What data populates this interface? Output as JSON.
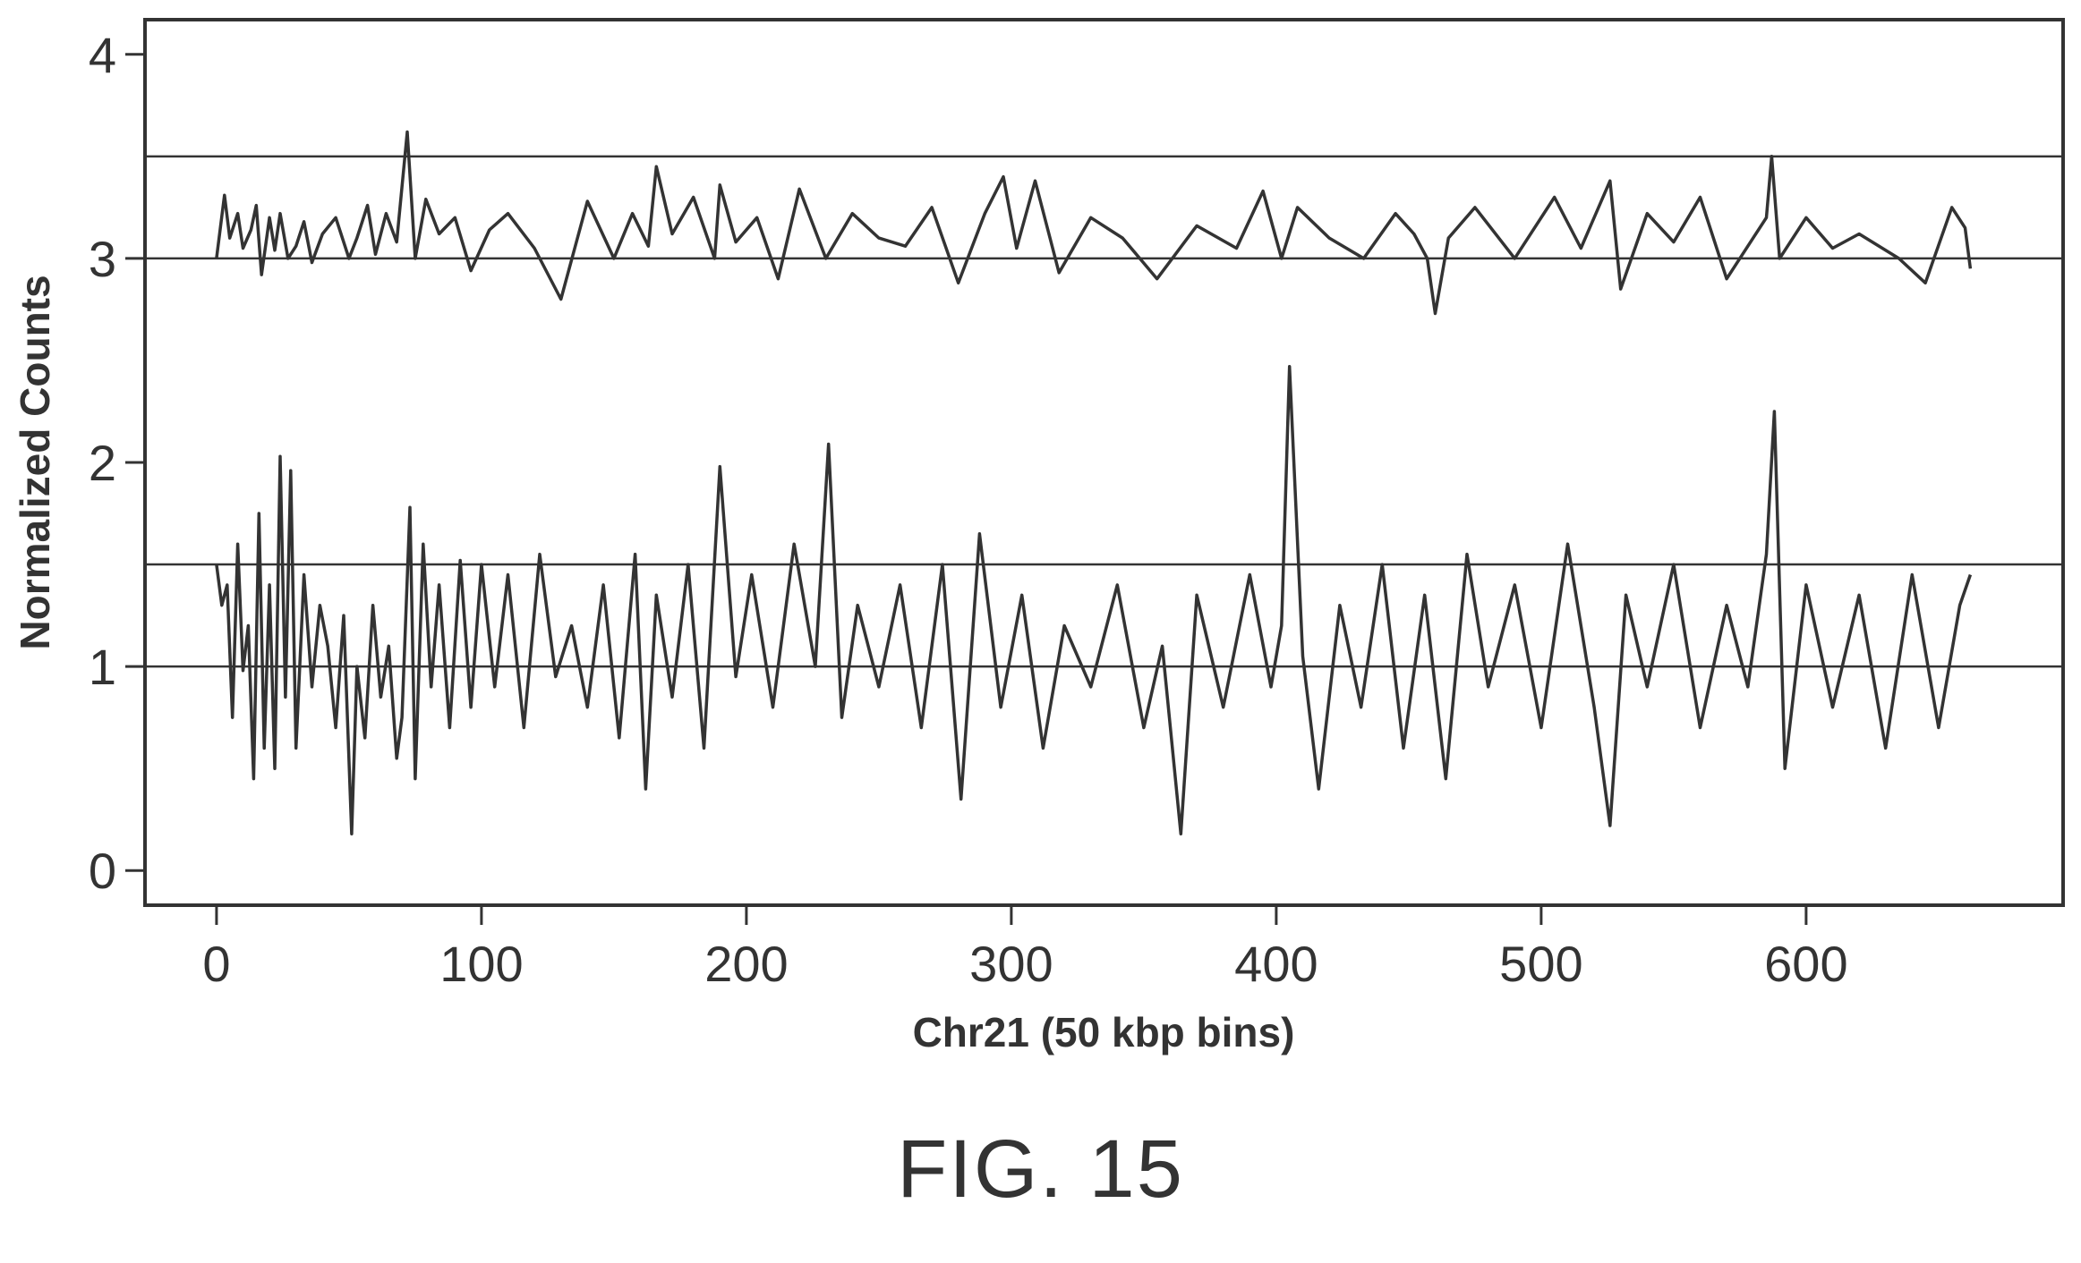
{
  "chart_data": {
    "type": "line",
    "xlabel": "Chr21 (50 kbp bins)",
    "ylabel": "Normalized Counts",
    "xlim": [
      -27,
      697
    ],
    "ylim": [
      -0.17,
      4.17
    ],
    "xticks": [
      0,
      100,
      200,
      300,
      400,
      500,
      600
    ],
    "xtick_labels": [
      "0",
      "100",
      "200",
      "300",
      "400",
      "500",
      "600"
    ],
    "yticks": [
      0,
      1,
      2,
      3,
      4
    ],
    "ytick_labels": [
      "0",
      "1",
      "2",
      "3",
      "4"
    ],
    "reference_lines": [
      1,
      1.5,
      3,
      3.5
    ],
    "grid": false,
    "legend": "none",
    "line_color": "#333333",
    "series": [
      {
        "x": [
          0,
          3,
          5,
          8,
          10,
          13,
          15,
          17,
          20,
          22,
          24,
          27,
          30,
          33,
          36,
          40,
          45,
          50,
          53,
          57,
          60,
          64,
          68,
          72,
          75,
          79,
          84,
          90,
          96,
          103,
          110,
          120,
          130,
          140,
          150,
          157,
          163,
          166,
          172,
          180,
          188,
          190,
          196,
          204,
          212,
          220,
          230,
          240,
          250,
          260,
          270,
          280,
          290,
          297,
          302,
          309,
          318,
          330,
          342,
          355,
          370,
          385,
          395,
          402,
          408,
          420,
          433,
          445,
          452,
          457,
          460,
          465,
          475,
          490,
          505,
          515,
          526,
          530,
          540,
          550,
          560,
          570,
          580,
          585,
          587,
          590,
          600,
          610,
          620,
          635,
          645,
          655,
          660,
          662
        ],
        "y": [
          3.0,
          3.31,
          3.1,
          3.22,
          3.05,
          3.14,
          3.26,
          2.92,
          3.2,
          3.04,
          3.22,
          3.0,
          3.06,
          3.18,
          2.98,
          3.12,
          3.2,
          3.0,
          3.1,
          3.26,
          3.02,
          3.22,
          3.08,
          3.62,
          3.0,
          3.29,
          3.12,
          3.2,
          2.94,
          3.14,
          3.22,
          3.05,
          2.8,
          3.28,
          3.0,
          3.22,
          3.06,
          3.45,
          3.12,
          3.3,
          3.0,
          3.36,
          3.08,
          3.2,
          2.9,
          3.34,
          3.0,
          3.22,
          3.1,
          3.06,
          3.25,
          2.88,
          3.22,
          3.4,
          3.05,
          3.38,
          2.93,
          3.2,
          3.1,
          2.9,
          3.16,
          3.05,
          3.33,
          3.0,
          3.25,
          3.1,
          3.0,
          3.22,
          3.12,
          3.0,
          2.73,
          3.1,
          3.25,
          3.0,
          3.3,
          3.05,
          3.38,
          2.85,
          3.22,
          3.08,
          3.3,
          2.9,
          3.1,
          3.2,
          3.5,
          3.0,
          3.2,
          3.05,
          3.12,
          3.0,
          2.88,
          3.25,
          3.15,
          2.95
        ]
      },
      {
        "x": [
          0,
          2,
          4,
          6,
          8,
          10,
          12,
          14,
          16,
          18,
          20,
          22,
          24,
          26,
          28,
          30,
          33,
          36,
          39,
          42,
          45,
          48,
          51,
          53,
          56,
          59,
          62,
          65,
          68,
          70,
          73,
          75,
          78,
          81,
          84,
          88,
          92,
          96,
          100,
          105,
          110,
          116,
          122,
          128,
          134,
          140,
          146,
          152,
          158,
          162,
          166,
          172,
          178,
          184,
          190,
          196,
          202,
          210,
          218,
          226,
          231,
          236,
          242,
          250,
          258,
          266,
          274,
          281,
          288,
          296,
          304,
          312,
          320,
          330,
          340,
          350,
          357,
          364,
          370,
          380,
          390,
          398,
          402,
          405,
          410,
          416,
          424,
          432,
          440,
          448,
          456,
          464,
          472,
          480,
          490,
          500,
          510,
          520,
          526,
          532,
          540,
          550,
          560,
          570,
          578,
          585,
          588,
          592,
          600,
          610,
          620,
          630,
          640,
          650,
          658,
          662
        ],
        "y": [
          1.5,
          1.3,
          1.4,
          0.75,
          1.6,
          0.98,
          1.2,
          0.45,
          1.75,
          0.6,
          1.4,
          0.5,
          2.03,
          0.85,
          1.96,
          0.6,
          1.45,
          0.9,
          1.3,
          1.1,
          0.7,
          1.25,
          0.18,
          1.0,
          0.65,
          1.3,
          0.85,
          1.1,
          0.55,
          0.75,
          1.78,
          0.45,
          1.6,
          0.9,
          1.4,
          0.7,
          1.52,
          0.8,
          1.5,
          0.9,
          1.45,
          0.7,
          1.55,
          0.95,
          1.2,
          0.8,
          1.4,
          0.65,
          1.55,
          0.4,
          1.35,
          0.85,
          1.5,
          0.6,
          1.98,
          0.95,
          1.45,
          0.8,
          1.6,
          1.0,
          2.09,
          0.75,
          1.3,
          0.9,
          1.4,
          0.7,
          1.5,
          0.35,
          1.65,
          0.8,
          1.35,
          0.6,
          1.2,
          0.9,
          1.4,
          0.7,
          1.1,
          0.18,
          1.35,
          0.8,
          1.45,
          0.9,
          1.2,
          2.47,
          1.05,
          0.4,
          1.3,
          0.8,
          1.5,
          0.6,
          1.35,
          0.45,
          1.55,
          0.9,
          1.4,
          0.7,
          1.6,
          0.8,
          0.22,
          1.35,
          0.9,
          1.5,
          0.7,
          1.3,
          0.9,
          1.55,
          2.25,
          0.5,
          1.4,
          0.8,
          1.35,
          0.6,
          1.45,
          0.7,
          1.3,
          1.45
        ]
      }
    ]
  },
  "figure_label": "FIG. 15"
}
